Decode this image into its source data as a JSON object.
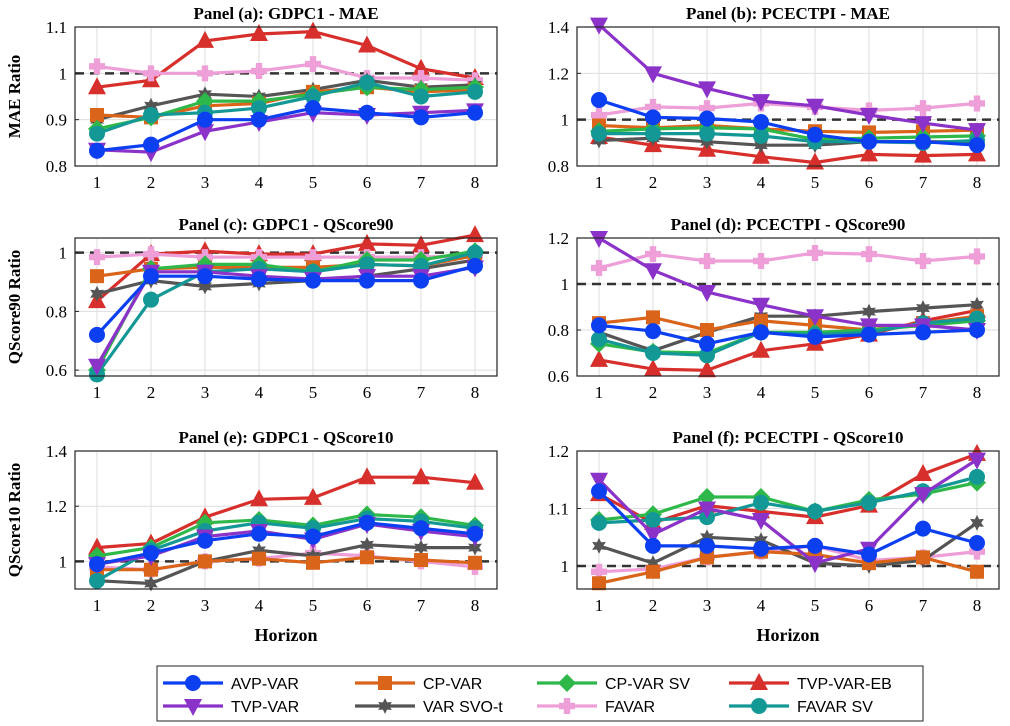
{
  "series_styles": [
    {
      "name": "AVP-VAR",
      "color": "#0b3ff0",
      "marker": "circle"
    },
    {
      "name": "CP-VAR",
      "color": "#d9641a",
      "marker": "square"
    },
    {
      "name": "CP-VAR SV",
      "color": "#2eb84a",
      "marker": "diamond"
    },
    {
      "name": "TVP-VAR-EB",
      "color": "#d7302c",
      "marker": "triangle-up"
    },
    {
      "name": "TVP-VAR",
      "color": "#8b32c9",
      "marker": "triangle-down"
    },
    {
      "name": "VAR SVO-t",
      "color": "#555555",
      "marker": "hexagram"
    },
    {
      "name": "FAVAR",
      "color": "#ee9fd8",
      "marker": "plus"
    },
    {
      "name": "FAVAR SV",
      "color": "#139896",
      "marker": "circle"
    }
  ],
  "x_axis_label": "Horizon",
  "chart_data": [
    {
      "type": "line",
      "title": "Panel (a): GDPC1 - MAE",
      "ylabel": "MAE Ratio",
      "categories": [
        1,
        2,
        3,
        4,
        5,
        6,
        7,
        8
      ],
      "ylim": [
        0.8,
        1.1
      ],
      "yticks": [
        "0.8",
        "0.9",
        "1",
        "1.1"
      ],
      "reference_line": 1,
      "series": [
        {
          "name": "AVP-VAR",
          "values": [
            0.833,
            0.846,
            0.9,
            0.9,
            0.925,
            0.915,
            0.905,
            0.915
          ]
        },
        {
          "name": "CP-VAR",
          "values": [
            0.91,
            0.905,
            0.93,
            0.935,
            0.96,
            0.97,
            0.96,
            0.965
          ]
        },
        {
          "name": "CP-VAR SV",
          "values": [
            0.88,
            0.905,
            0.94,
            0.94,
            0.955,
            0.97,
            0.965,
            0.97
          ]
        },
        {
          "name": "TVP-VAR-EB",
          "values": [
            0.97,
            0.985,
            1.07,
            1.085,
            1.09,
            1.06,
            1.01,
            0.99
          ]
        },
        {
          "name": "TVP-VAR",
          "values": [
            0.835,
            0.83,
            0.875,
            0.895,
            0.915,
            0.91,
            0.915,
            0.92
          ]
        },
        {
          "name": "VAR SVO-t",
          "values": [
            0.9,
            0.93,
            0.955,
            0.95,
            0.965,
            0.985,
            0.97,
            0.975
          ]
        },
        {
          "name": "FAVAR",
          "values": [
            1.015,
            1.0,
            1.0,
            1.005,
            1.02,
            0.99,
            0.99,
            0.985
          ]
        },
        {
          "name": "FAVAR SV",
          "values": [
            0.87,
            0.91,
            0.915,
            0.925,
            0.95,
            0.98,
            0.95,
            0.96
          ]
        }
      ]
    },
    {
      "type": "line",
      "title": "Panel (b): PCECTPI - MAE",
      "ylabel": "",
      "categories": [
        1,
        2,
        3,
        4,
        5,
        6,
        7,
        8
      ],
      "ylim": [
        0.8,
        1.4
      ],
      "yticks": [
        "0.8",
        "1",
        "1.2",
        "1.4"
      ],
      "reference_line": 1,
      "series": [
        {
          "name": "AVP-VAR",
          "values": [
            1.085,
            1.01,
            1.005,
            0.99,
            0.935,
            0.905,
            0.905,
            0.89
          ]
        },
        {
          "name": "CP-VAR",
          "values": [
            0.975,
            0.965,
            0.975,
            0.96,
            0.95,
            0.945,
            0.95,
            0.955
          ]
        },
        {
          "name": "CP-VAR SV",
          "values": [
            0.95,
            0.96,
            0.965,
            0.96,
            0.915,
            0.92,
            0.925,
            0.93
          ]
        },
        {
          "name": "TVP-VAR-EB",
          "values": [
            0.925,
            0.89,
            0.87,
            0.84,
            0.815,
            0.85,
            0.845,
            0.85
          ]
        },
        {
          "name": "TVP-VAR",
          "values": [
            1.41,
            1.2,
            1.135,
            1.08,
            1.06,
            1.02,
            0.985,
            0.955
          ]
        },
        {
          "name": "VAR SVO-t",
          "values": [
            0.91,
            0.92,
            0.905,
            0.89,
            0.89,
            0.905,
            0.905,
            0.905
          ]
        },
        {
          "name": "FAVAR",
          "values": [
            1.02,
            1.055,
            1.05,
            1.07,
            1.055,
            1.04,
            1.05,
            1.07
          ]
        },
        {
          "name": "FAVAR SV",
          "values": [
            0.94,
            0.94,
            0.94,
            0.93,
            0.905,
            0.905,
            0.9,
            0.91
          ]
        }
      ]
    },
    {
      "type": "line",
      "title": "Panel (c): GDPC1 - QScore90",
      "ylabel": "QScore90 Ratio",
      "categories": [
        1,
        2,
        3,
        4,
        5,
        6,
        7,
        8
      ],
      "ylim": [
        0.58,
        1.05
      ],
      "yticks": [
        "0.6",
        "0.8",
        "1"
      ],
      "ytick_values": [
        0.6,
        0.8,
        1.0
      ],
      "reference_line": 1,
      "series": [
        {
          "name": "AVP-VAR",
          "values": [
            0.72,
            0.92,
            0.92,
            0.91,
            0.905,
            0.905,
            0.905,
            0.955
          ]
        },
        {
          "name": "CP-VAR",
          "values": [
            0.92,
            0.945,
            0.95,
            0.95,
            0.95,
            0.96,
            0.955,
            0.99
          ]
        },
        {
          "name": "CP-VAR SV",
          "values": [
            0.6,
            0.945,
            0.96,
            0.96,
            0.935,
            0.975,
            0.975,
            1.005
          ]
        },
        {
          "name": "TVP-VAR-EB",
          "values": [
            0.835,
            0.995,
            1.005,
            0.995,
            0.995,
            1.03,
            1.025,
            1.06
          ]
        },
        {
          "name": "TVP-VAR",
          "values": [
            0.615,
            0.935,
            0.935,
            0.92,
            0.91,
            0.92,
            0.92,
            0.95
          ]
        },
        {
          "name": "VAR SVO-t",
          "values": [
            0.86,
            0.905,
            0.885,
            0.895,
            0.905,
            0.92,
            0.945,
            0.975
          ]
        },
        {
          "name": "FAVAR",
          "values": [
            0.985,
            0.995,
            0.985,
            0.985,
            0.985,
            0.985,
            0.985,
            0.99
          ]
        },
        {
          "name": "FAVAR SV",
          "values": [
            0.585,
            0.84,
            0.935,
            0.945,
            0.935,
            0.96,
            0.955,
            1.0
          ]
        }
      ]
    },
    {
      "type": "line",
      "title": "Panel (d): PCECTPI - QScore90",
      "ylabel": "",
      "categories": [
        1,
        2,
        3,
        4,
        5,
        6,
        7,
        8
      ],
      "ylim": [
        0.6,
        1.2
      ],
      "yticks": [
        "0.6",
        "0.8",
        "1",
        "1.2"
      ],
      "reference_line": 1,
      "series": [
        {
          "name": "AVP-VAR",
          "values": [
            0.82,
            0.795,
            0.74,
            0.79,
            0.77,
            0.78,
            0.79,
            0.8
          ]
        },
        {
          "name": "CP-VAR",
          "values": [
            0.83,
            0.855,
            0.8,
            0.84,
            0.82,
            0.8,
            0.83,
            0.86
          ]
        },
        {
          "name": "CP-VAR SV",
          "values": [
            0.74,
            0.705,
            0.7,
            0.79,
            0.79,
            0.8,
            0.82,
            0.84
          ]
        },
        {
          "name": "TVP-VAR-EB",
          "values": [
            0.67,
            0.63,
            0.625,
            0.71,
            0.74,
            0.78,
            0.84,
            0.885
          ]
        },
        {
          "name": "TVP-VAR",
          "values": [
            1.2,
            1.06,
            0.965,
            0.91,
            0.86,
            0.82,
            0.82,
            0.8
          ]
        },
        {
          "name": "VAR SVO-t",
          "values": [
            0.79,
            0.71,
            0.79,
            0.86,
            0.86,
            0.88,
            0.895,
            0.91
          ]
        },
        {
          "name": "FAVAR",
          "values": [
            1.07,
            1.13,
            1.1,
            1.1,
            1.135,
            1.13,
            1.1,
            1.12
          ]
        },
        {
          "name": "FAVAR SV",
          "values": [
            0.76,
            0.7,
            0.69,
            0.79,
            0.78,
            0.79,
            0.83,
            0.85
          ]
        }
      ]
    },
    {
      "type": "line",
      "title": "Panel (e): GDPC1 - QScore10",
      "ylabel": "QScore10 Ratio",
      "categories": [
        1,
        2,
        3,
        4,
        5,
        6,
        7,
        8
      ],
      "ylim": [
        0.9,
        1.4
      ],
      "yticks": [
        "1",
        "1.2",
        "1.4"
      ],
      "ytick_values": [
        1.0,
        1.2,
        1.4
      ],
      "reference_line": 1,
      "series": [
        {
          "name": "AVP-VAR",
          "values": [
            0.99,
            1.03,
            1.075,
            1.1,
            1.09,
            1.14,
            1.12,
            1.1
          ]
        },
        {
          "name": "CP-VAR",
          "values": [
            0.97,
            0.97,
            1.0,
            1.01,
            0.995,
            1.015,
            1.005,
            0.995
          ]
        },
        {
          "name": "CP-VAR SV",
          "values": [
            1.02,
            1.05,
            1.14,
            1.15,
            1.13,
            1.17,
            1.16,
            1.13
          ]
        },
        {
          "name": "TVP-VAR-EB",
          "values": [
            1.05,
            1.065,
            1.16,
            1.225,
            1.23,
            1.305,
            1.305,
            1.285
          ]
        },
        {
          "name": "TVP-VAR",
          "values": [
            0.99,
            1.02,
            1.09,
            1.11,
            1.08,
            1.135,
            1.11,
            1.09
          ]
        },
        {
          "name": "VAR SVO-t",
          "values": [
            0.93,
            0.92,
            1.0,
            1.04,
            1.02,
            1.06,
            1.05,
            1.05
          ]
        },
        {
          "name": "FAVAR",
          "values": [
            0.98,
            0.97,
            1.0,
            1.01,
            1.03,
            1.02,
            1.0,
            0.98
          ]
        },
        {
          "name": "FAVAR SV",
          "values": [
            0.93,
            1.04,
            1.11,
            1.14,
            1.12,
            1.155,
            1.145,
            1.12
          ]
        }
      ]
    },
    {
      "type": "line",
      "title": "Panel (f): PCECTPI - QScore10",
      "ylabel": "",
      "categories": [
        1,
        2,
        3,
        4,
        5,
        6,
        7,
        8
      ],
      "ylim": [
        0.96,
        1.2
      ],
      "yticks": [
        "1",
        "1.1",
        "1.2"
      ],
      "ytick_values": [
        1.0,
        1.1,
        1.2
      ],
      "reference_line": 1,
      "series": [
        {
          "name": "AVP-VAR",
          "values": [
            1.13,
            1.035,
            1.035,
            1.03,
            1.035,
            1.02,
            1.065,
            1.04
          ]
        },
        {
          "name": "CP-VAR",
          "values": [
            0.97,
            0.99,
            1.015,
            1.025,
            1.02,
            1.005,
            1.015,
            0.99
          ]
        },
        {
          "name": "CP-VAR SV",
          "values": [
            1.08,
            1.09,
            1.12,
            1.12,
            1.095,
            1.115,
            1.125,
            1.145
          ]
        },
        {
          "name": "TVP-VAR-EB",
          "values": [
            1.125,
            1.075,
            1.105,
            1.095,
            1.085,
            1.105,
            1.16,
            1.195
          ]
        },
        {
          "name": "TVP-VAR",
          "values": [
            1.15,
            1.055,
            1.1,
            1.08,
            1.005,
            1.03,
            1.125,
            1.185
          ]
        },
        {
          "name": "VAR SVO-t",
          "values": [
            1.035,
            1.005,
            1.05,
            1.045,
            1.005,
            1.0,
            1.01,
            1.075
          ]
        },
        {
          "name": "FAVAR",
          "values": [
            0.99,
            0.995,
            1.015,
            1.025,
            1.035,
            1.01,
            1.015,
            1.025
          ]
        },
        {
          "name": "FAVAR SV",
          "values": [
            1.075,
            1.08,
            1.085,
            1.11,
            1.095,
            1.11,
            1.13,
            1.155
          ]
        }
      ]
    }
  ]
}
